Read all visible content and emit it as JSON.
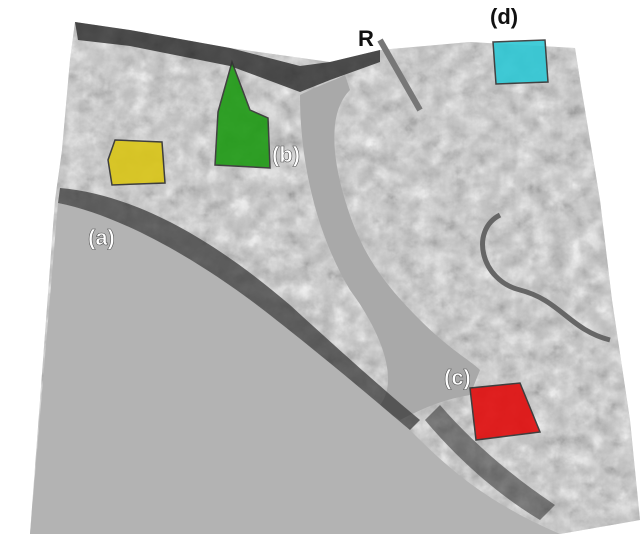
{
  "labels": [
    "(a)",
    "(b)",
    "(c)",
    "(d)",
    "R"
  ]
}
